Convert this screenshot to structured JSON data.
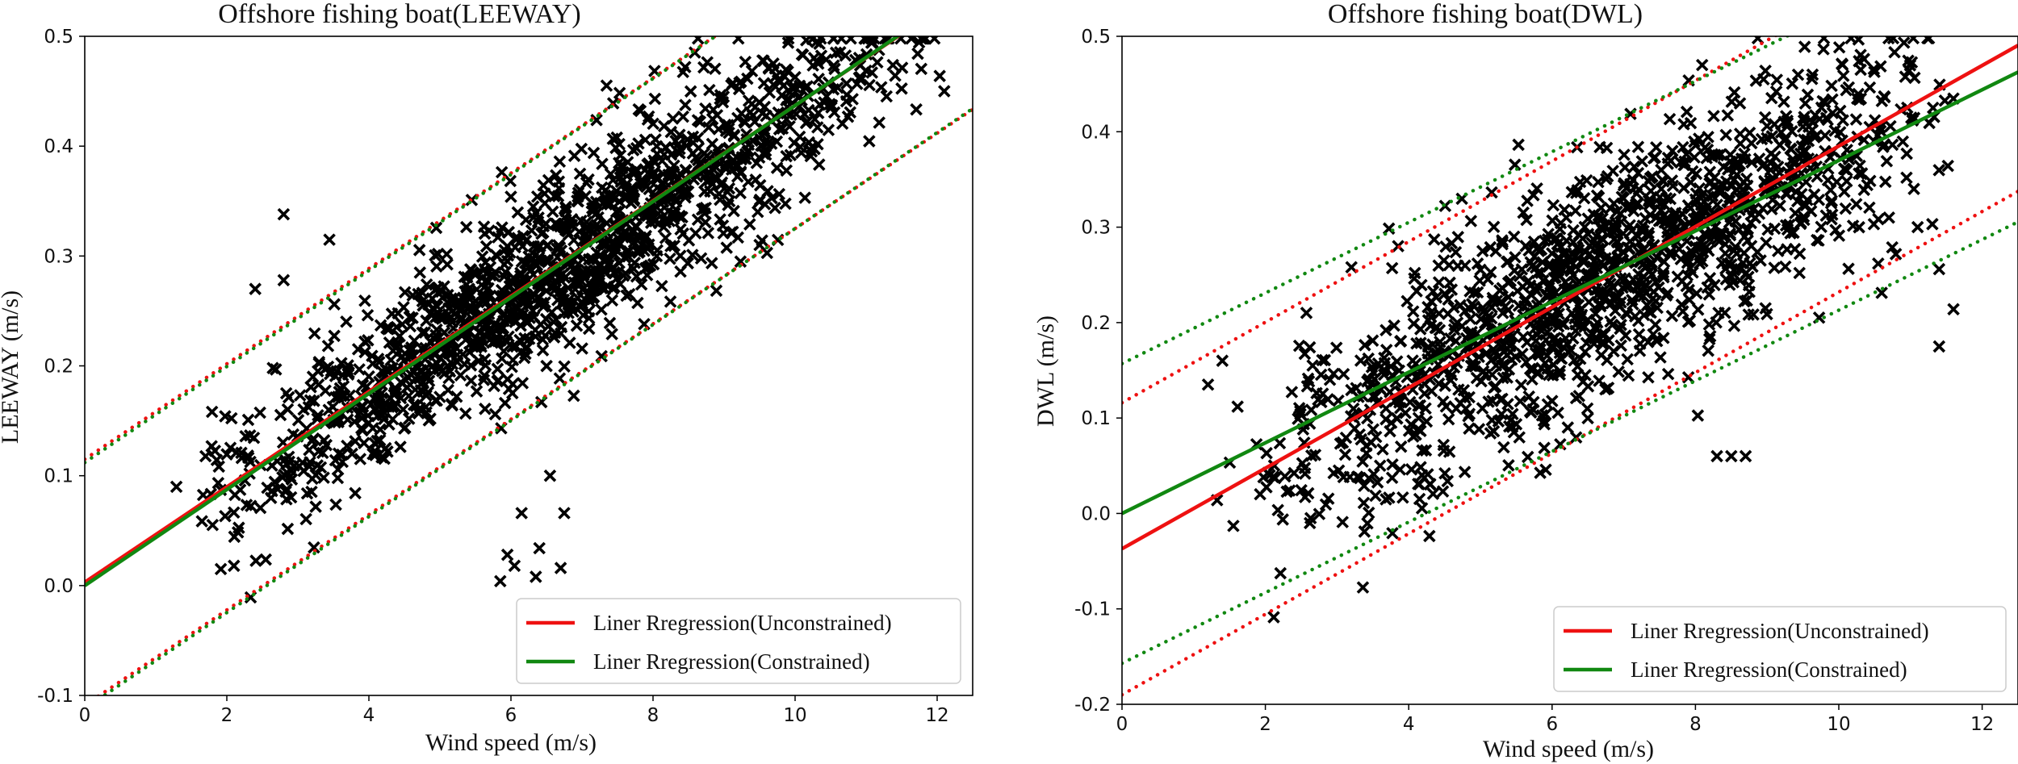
{
  "chart_data": [
    {
      "type": "scatter",
      "title": "Offshore fishing boat(LEEWAY)",
      "xlabel": "Wind speed (m/s)",
      "ylabel": "LEEWAY (m/s)",
      "xlim": [
        0,
        12.5
      ],
      "ylim": [
        -0.1,
        0.5
      ],
      "xticks": [
        "0",
        "2",
        "4",
        "6",
        "8",
        "10",
        "12"
      ],
      "yticks": [
        "-0.1",
        "0.0",
        "0.1",
        "0.2",
        "0.3",
        "0.4",
        "0.5"
      ],
      "legend_position": "lower-right",
      "legend": [
        {
          "label": "Liner Rregression(Unconstrained)",
          "color": "#ee1111"
        },
        {
          "label": "Liner Rregression(Constrained)",
          "color": "#118811"
        }
      ],
      "lines": {
        "unconstrained": {
          "slope": 0.0434,
          "intercept": 0.003,
          "color": "#ee1111"
        },
        "constrained": {
          "slope": 0.0437,
          "intercept": 0.0,
          "color": "#118811"
        }
      },
      "bounds": {
        "unconstrained": {
          "offset": 0.112,
          "color": "#ee1111"
        },
        "constrained": {
          "offset": 0.112,
          "color": "#118811"
        }
      },
      "scatter": {
        "marker": "x",
        "color": "#000000",
        "n": 1500,
        "x_range": [
          1.2,
          12.1
        ],
        "x_peak": 7.0,
        "slope": 0.0437,
        "intercept": 0.0,
        "noise_sd": 0.045,
        "outliers": [
          [
            5.85,
            0.004
          ],
          [
            5.95,
            0.028
          ],
          [
            6.05,
            0.018
          ],
          [
            6.15,
            0.066
          ],
          [
            6.35,
            0.008
          ],
          [
            6.4,
            0.034
          ],
          [
            6.7,
            0.016
          ],
          [
            6.75,
            0.066
          ],
          [
            6.55,
            0.1
          ],
          [
            2.8,
            0.338
          ],
          [
            2.8,
            0.278
          ],
          [
            2.4,
            0.27
          ],
          [
            2.1,
            0.018
          ],
          [
            12.1,
            0.45
          ]
        ]
      }
    },
    {
      "type": "scatter",
      "title": "Offshore fishing boat(DWL)",
      "xlabel": "Wind speed (m/s)",
      "ylabel": "DWL (m/s)",
      "xlim": [
        0,
        12.5
      ],
      "ylim": [
        -0.2,
        0.5
      ],
      "xticks": [
        "0",
        "2",
        "4",
        "6",
        "8",
        "10",
        "12"
      ],
      "yticks": [
        "-0.2",
        "-0.1",
        "0.0",
        "0.1",
        "0.2",
        "0.3",
        "0.4",
        "0.5"
      ],
      "legend_position": "lower-right",
      "legend": [
        {
          "label": "Liner Rregression(Unconstrained)",
          "color": "#ee1111"
        },
        {
          "label": "Liner Rregression(Constrained)",
          "color": "#118811"
        }
      ],
      "lines": {
        "unconstrained": {
          "slope": 0.0422,
          "intercept": -0.037,
          "color": "#ee1111"
        },
        "constrained": {
          "slope": 0.037,
          "intercept": 0.0,
          "color": "#118811"
        }
      },
      "bounds": {
        "unconstrained": {
          "offset": 0.153,
          "color": "#ee1111"
        },
        "constrained": {
          "offset": 0.157,
          "color": "#118811"
        }
      },
      "scatter": {
        "marker": "x",
        "color": "#000000",
        "n": 1450,
        "x_range": [
          1.2,
          11.8
        ],
        "x_peak": 6.8,
        "slope": 0.0422,
        "intercept": -0.035,
        "noise_sd": 0.07,
        "outliers": [
          [
            8.3,
            0.06
          ],
          [
            8.5,
            0.06
          ],
          [
            8.7,
            0.06
          ],
          [
            11.4,
            0.175
          ],
          [
            11.6,
            0.214
          ],
          [
            11.4,
            0.256
          ],
          [
            11.1,
            0.3
          ],
          [
            10.7,
            0.31
          ],
          [
            1.2,
            0.135
          ],
          [
            1.4,
            0.16
          ]
        ]
      }
    }
  ]
}
